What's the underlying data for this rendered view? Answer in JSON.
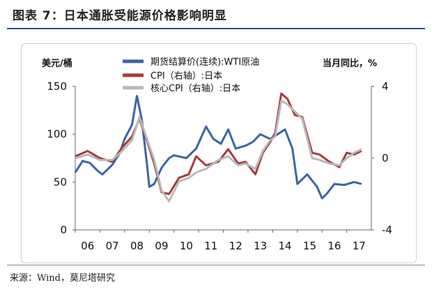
{
  "header": {
    "title": "图表 7：日本通胀受能源价格影响明显"
  },
  "footer": {
    "source": "来源：Wind，莫尼塔研究"
  },
  "chart_data": {
    "type": "line",
    "title": "",
    "left_axis_unit": "美元/桶",
    "right_axis_unit": "当月同比，%",
    "x_ticks": [
      "06",
      "07",
      "08",
      "09",
      "10",
      "11",
      "12",
      "13",
      "14",
      "15",
      "16",
      "17"
    ],
    "y_left": {
      "ticks": [
        0,
        50,
        100,
        150
      ],
      "range": [
        0,
        150
      ]
    },
    "y_right": {
      "ticks": [
        -4,
        0,
        4
      ],
      "range": [
        -4,
        4
      ]
    },
    "legend_position": "top",
    "series": [
      {
        "name": "期货结算价(连续):WTI原油",
        "axis": "left",
        "color": "#3a64a8",
        "x": [
          2006.0,
          2006.3,
          2006.6,
          2006.9,
          2007.1,
          2007.5,
          2007.8,
          2008.0,
          2008.3,
          2008.5,
          2008.7,
          2008.9,
          2009.0,
          2009.2,
          2009.5,
          2009.8,
          2010.0,
          2010.5,
          2010.9,
          2011.3,
          2011.6,
          2011.9,
          2012.2,
          2012.5,
          2012.9,
          2013.2,
          2013.5,
          2013.9,
          2014.2,
          2014.5,
          2014.8,
          2015.0,
          2015.4,
          2015.8,
          2016.0,
          2016.2,
          2016.5,
          2016.9,
          2017.3,
          2017.6
        ],
        "y": [
          60,
          72,
          70,
          62,
          58,
          68,
          80,
          95,
          110,
          140,
          115,
          70,
          45,
          48,
          65,
          75,
          78,
          75,
          85,
          108,
          95,
          90,
          105,
          85,
          88,
          92,
          100,
          95,
          100,
          105,
          85,
          48,
          58,
          45,
          33,
          38,
          48,
          47,
          50,
          48
        ]
      },
      {
        "name": "CPI（右轴）:日本",
        "axis": "right",
        "color": "#a63a3a",
        "x": [
          2006.0,
          2006.5,
          2007.0,
          2007.5,
          2007.9,
          2008.3,
          2008.6,
          2008.9,
          2009.2,
          2009.5,
          2009.8,
          2010.2,
          2010.6,
          2010.9,
          2011.3,
          2011.8,
          2012.2,
          2012.6,
          2012.9,
          2013.3,
          2013.6,
          2013.9,
          2014.1,
          2014.35,
          2014.6,
          2014.9,
          2015.2,
          2015.6,
          2015.9,
          2016.3,
          2016.7,
          2017.0,
          2017.3,
          2017.6
        ],
        "y": [
          0.1,
          0.4,
          0.0,
          -0.2,
          0.6,
          1.2,
          2.2,
          1.0,
          -0.3,
          -1.9,
          -2.0,
          -1.1,
          -0.9,
          0.1,
          -0.4,
          -0.2,
          0.5,
          -0.3,
          -0.2,
          -0.9,
          0.3,
          0.9,
          1.4,
          3.6,
          3.3,
          2.4,
          2.3,
          0.3,
          0.2,
          -0.2,
          -0.5,
          0.3,
          0.2,
          0.4
        ]
      },
      {
        "name": "核心CPI（右轴）:日本",
        "axis": "right",
        "color": "#b9b9b9",
        "x": [
          2006.0,
          2006.5,
          2007.0,
          2007.5,
          2007.9,
          2008.3,
          2008.6,
          2008.9,
          2009.2,
          2009.5,
          2009.8,
          2010.2,
          2010.6,
          2010.9,
          2011.3,
          2011.8,
          2012.2,
          2012.6,
          2012.9,
          2013.3,
          2013.6,
          2013.9,
          2014.1,
          2014.35,
          2014.6,
          2014.9,
          2015.2,
          2015.6,
          2015.9,
          2016.3,
          2016.7,
          2017.0,
          2017.3,
          2017.6
        ],
        "y": [
          0.0,
          0.2,
          -0.1,
          -0.1,
          0.4,
          1.0,
          2.3,
          1.1,
          -0.1,
          -1.8,
          -2.4,
          -1.3,
          -1.1,
          -0.8,
          -0.6,
          -0.1,
          0.1,
          -0.4,
          -0.3,
          -0.6,
          0.4,
          1.0,
          1.2,
          3.2,
          3.0,
          2.6,
          2.2,
          0.0,
          -0.1,
          -0.3,
          -0.4,
          0.0,
          0.3,
          0.5
        ]
      }
    ]
  }
}
